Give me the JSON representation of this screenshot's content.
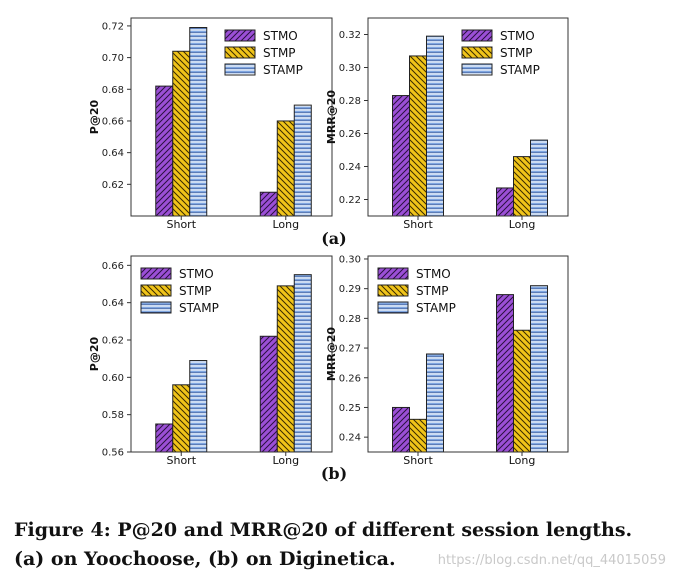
{
  "colors": {
    "STMO": "#9b4fd6",
    "STMP": "#f0c419",
    "STAMP": "#7fa6e0",
    "frame": "#333333"
  },
  "subfigure_labels": [
    "(a)",
    "(b)"
  ],
  "caption": "Figure 4: P@20 and MRR@20 of different session lengths. (a) on Yoochoose, (b) on Diginetica.",
  "watermark": "https://blog.csdn.net/qq_44015059",
  "chart_data": [
    {
      "type": "bar",
      "ylabel": "P@20",
      "categories": [
        "Short",
        "Long"
      ],
      "ylim": [
        0.6,
        0.725
      ],
      "yticks": [
        0.62,
        0.64,
        0.66,
        0.68,
        0.7,
        0.72
      ],
      "ytick_labels": [
        "0.62",
        "0.64",
        "0.66",
        "0.68",
        "0.70",
        "0.72"
      ],
      "legend": "top-right",
      "series": [
        {
          "name": "STMO",
          "values": [
            0.682,
            0.615
          ]
        },
        {
          "name": "STMP",
          "values": [
            0.704,
            0.66
          ]
        },
        {
          "name": "STAMP",
          "values": [
            0.719,
            0.67
          ]
        }
      ]
    },
    {
      "type": "bar",
      "ylabel": "MRR@20",
      "categories": [
        "Short",
        "Long"
      ],
      "ylim": [
        0.21,
        0.33
      ],
      "yticks": [
        0.22,
        0.24,
        0.26,
        0.28,
        0.3,
        0.32
      ],
      "ytick_labels": [
        "0.22",
        "0.24",
        "0.26",
        "0.28",
        "0.30",
        "0.32"
      ],
      "legend": "top-right",
      "series": [
        {
          "name": "STMO",
          "values": [
            0.283,
            0.227
          ]
        },
        {
          "name": "STMP",
          "values": [
            0.307,
            0.246
          ]
        },
        {
          "name": "STAMP",
          "values": [
            0.319,
            0.256
          ]
        }
      ]
    },
    {
      "type": "bar",
      "ylabel": "P@20",
      "categories": [
        "Short",
        "Long"
      ],
      "ylim": [
        0.56,
        0.665
      ],
      "yticks": [
        0.56,
        0.58,
        0.6,
        0.62,
        0.64,
        0.66
      ],
      "ytick_labels": [
        "0.56",
        "0.58",
        "0.60",
        "0.62",
        "0.64",
        "0.66"
      ],
      "legend": "top-left",
      "series": [
        {
          "name": "STMO",
          "values": [
            0.575,
            0.622
          ]
        },
        {
          "name": "STMP",
          "values": [
            0.596,
            0.649
          ]
        },
        {
          "name": "STAMP",
          "values": [
            0.609,
            0.655
          ]
        }
      ]
    },
    {
      "type": "bar",
      "ylabel": "MRR@20",
      "categories": [
        "Short",
        "Long"
      ],
      "ylim": [
        0.235,
        0.301
      ],
      "yticks": [
        0.24,
        0.25,
        0.26,
        0.27,
        0.28,
        0.29,
        0.3
      ],
      "ytick_labels": [
        "0.24",
        "0.25",
        "0.26",
        "0.27",
        "0.28",
        "0.29",
        "0.30"
      ],
      "legend": "top-left",
      "series": [
        {
          "name": "STMO",
          "values": [
            0.25,
            0.288
          ]
        },
        {
          "name": "STMP",
          "values": [
            0.246,
            0.276
          ]
        },
        {
          "name": "STAMP",
          "values": [
            0.268,
            0.291
          ]
        }
      ]
    }
  ]
}
